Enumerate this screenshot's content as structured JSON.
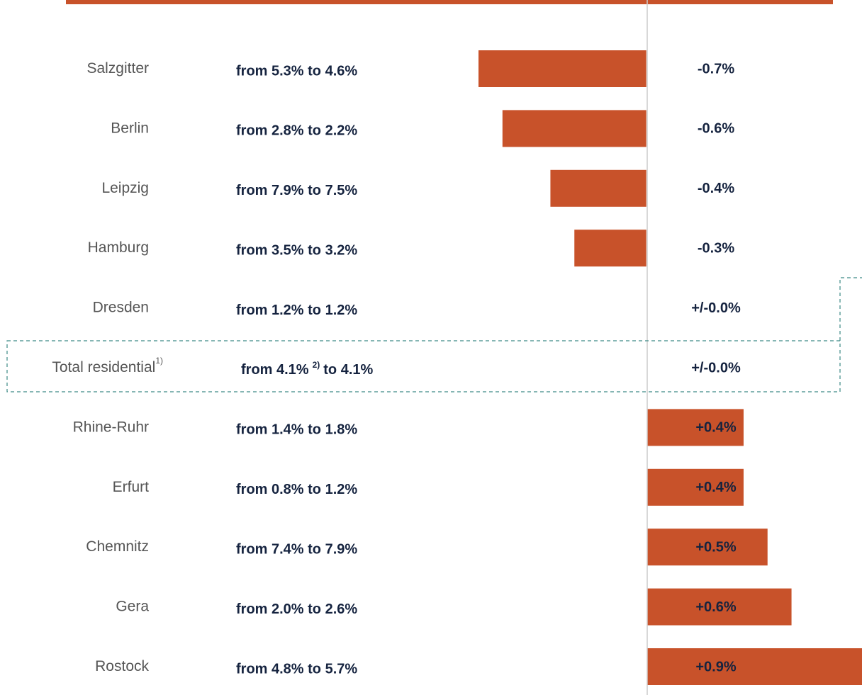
{
  "chart_data": {
    "type": "bar",
    "orientation": "horizontal",
    "categories": [
      "Salzgitter",
      "Berlin",
      "Leipzig",
      "Hamburg",
      "Dresden",
      "Total residential",
      "Rhine-Ruhr",
      "Erfurt",
      "Chemnitz",
      "Gera",
      "Rostock"
    ],
    "category_notes": [
      null,
      null,
      null,
      null,
      null,
      "1)",
      null,
      null,
      null,
      null,
      null
    ],
    "ranges": [
      "from 5.3% to 4.6%",
      "from 2.8% to 2.2%",
      "from 7.9% to 7.5%",
      "from 3.5% to 3.2%",
      "from 1.2% to 1.2%",
      {
        "before": "from 4.1%",
        "note": "2)",
        "after": "to 4.1%"
      },
      "from 1.4% to 1.8%",
      "from 0.8% to 1.2%",
      "from 7.4% to 7.9%",
      "from 2.0% to 2.6%",
      "from 4.8% to 5.7%"
    ],
    "values": [
      -0.7,
      -0.6,
      -0.4,
      -0.3,
      0.0,
      0.0,
      0.4,
      0.4,
      0.5,
      0.6,
      0.9
    ],
    "value_labels": [
      "-0.7%",
      "-0.6%",
      "-0.4%",
      "-0.3%",
      "+/-0.0%",
      "+/-0.0%",
      "+0.4%",
      "+0.4%",
      "+0.5%",
      "+0.6%",
      "+0.9%"
    ],
    "color": "#c8522a",
    "xlim": [
      -0.7,
      0.9
    ]
  }
}
